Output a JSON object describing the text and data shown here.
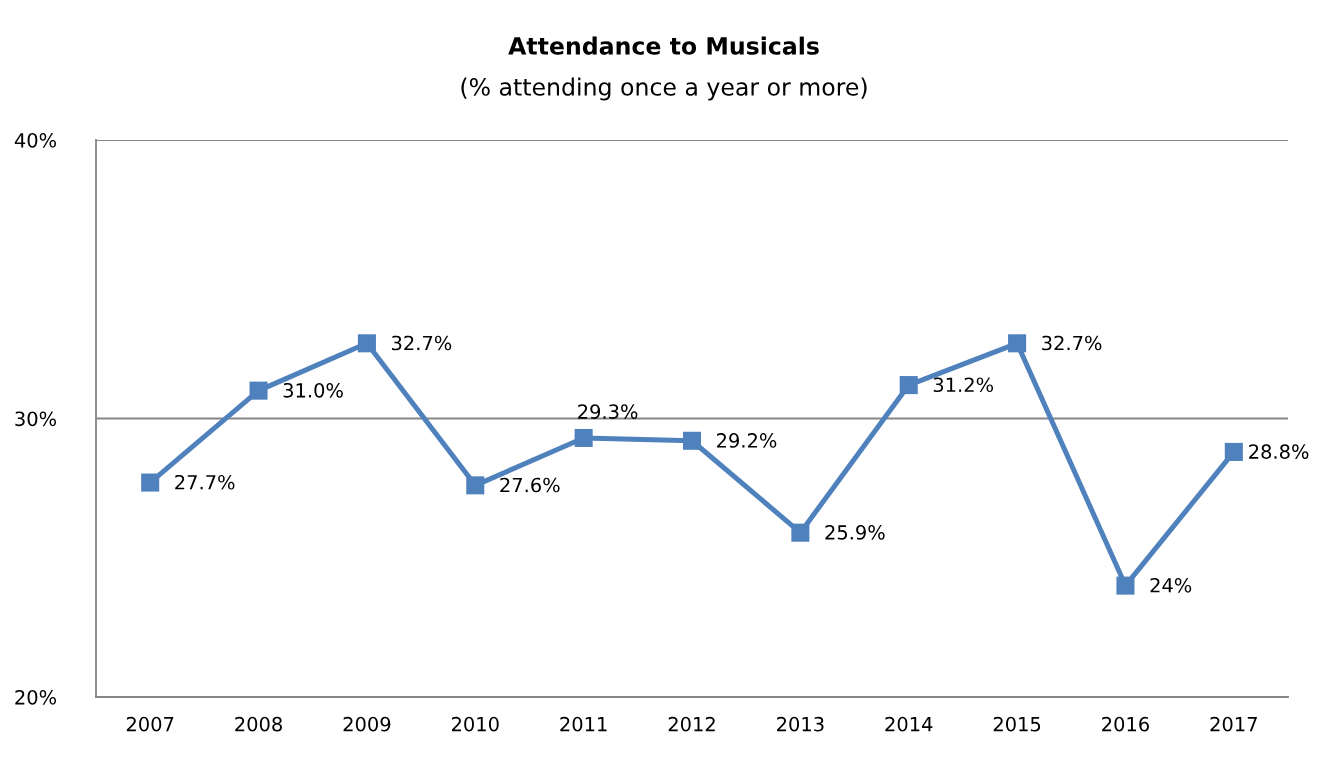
{
  "chart_data": {
    "type": "line",
    "title": "Attendance to Musicals",
    "subtitle": "(% attending once a year or more)",
    "categories": [
      "2007",
      "2008",
      "2009",
      "2010",
      "2011",
      "2012",
      "2013",
      "2014",
      "2015",
      "2016",
      "2017"
    ],
    "series": [
      {
        "color": "#4f81bd",
        "values": [
          27.7,
          31.0,
          32.7,
          27.6,
          29.3,
          29.2,
          25.9,
          31.2,
          32.7,
          24,
          28.8
        ],
        "value_labels": [
          "27.7%",
          "31.0%",
          "32.7%",
          "27.6%",
          "29.3%",
          "29.2%",
          "25.9%",
          "31.2%",
          "32.7%",
          "24%",
          "28.8%"
        ]
      }
    ],
    "ylim": [
      20,
      40
    ],
    "yticks": [
      {
        "value": 20,
        "label": "20%"
      },
      {
        "value": 30,
        "label": "30%"
      },
      {
        "value": 40,
        "label": "40%"
      }
    ],
    "grid": "y",
    "marker": "square",
    "line_style": "solid"
  }
}
